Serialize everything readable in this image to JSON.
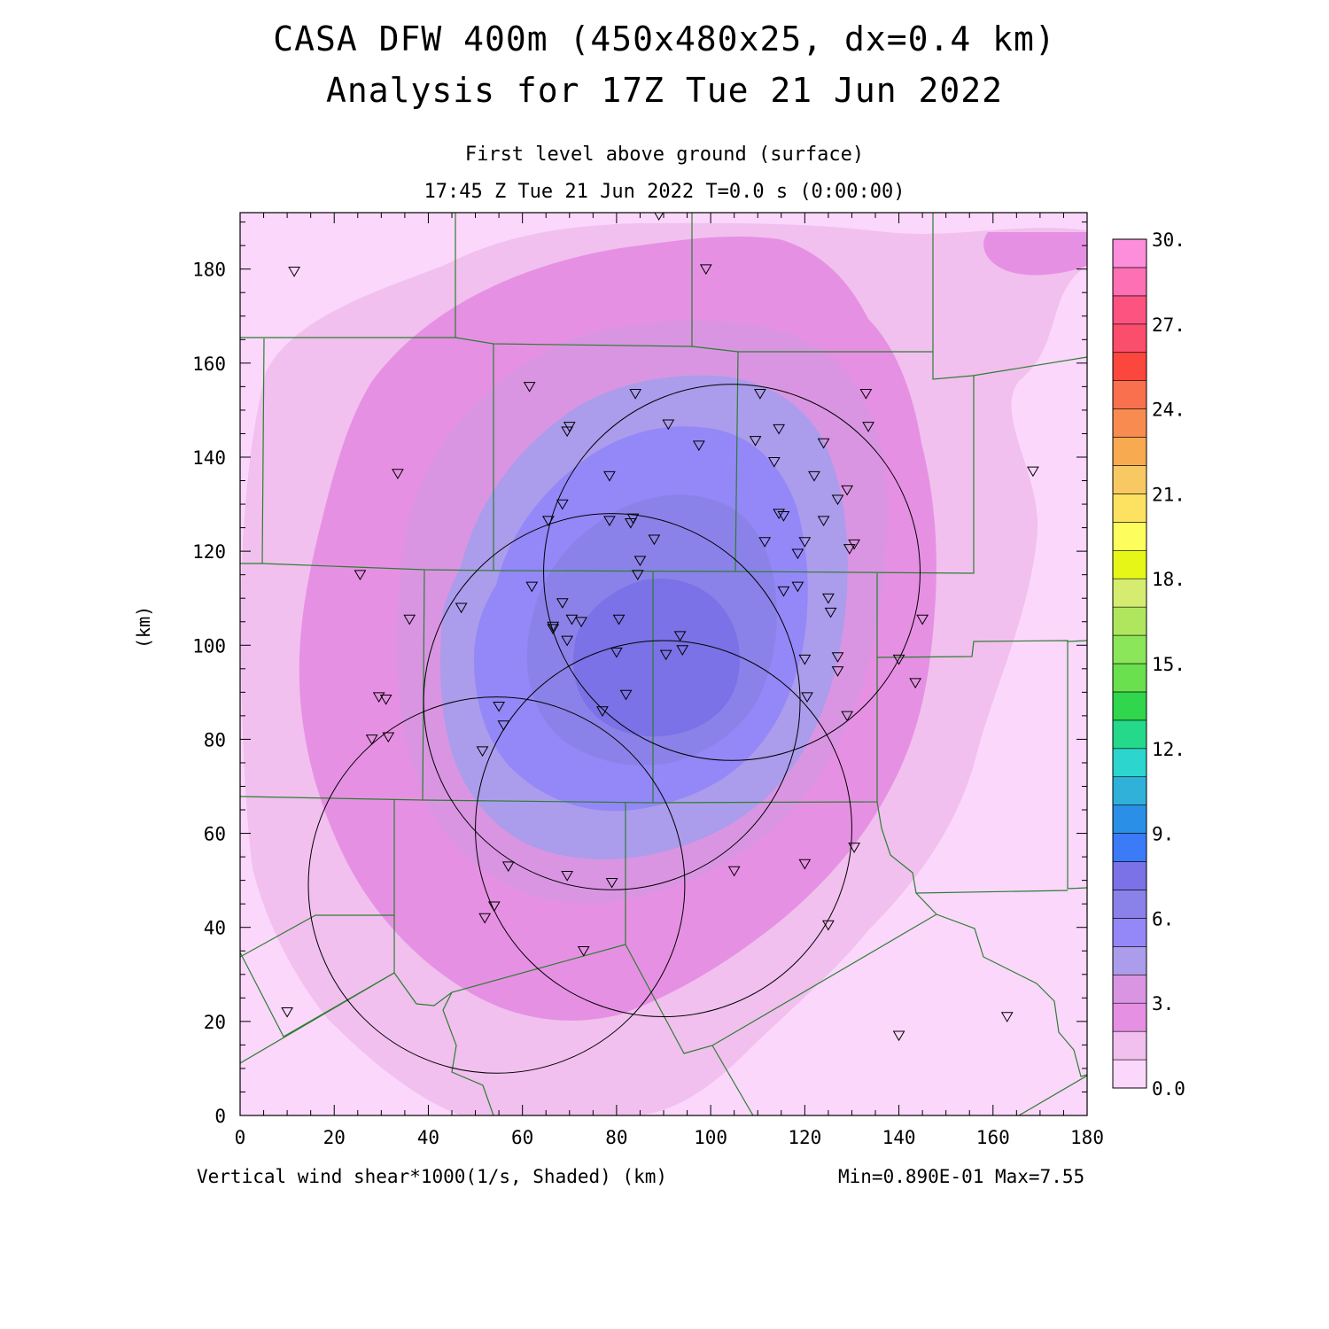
{
  "title": {
    "line1": "CASA DFW 400m (450x480x25, dx=0.4 km)",
    "line2": "Analysis for 17Z Tue 21 Jun 2022"
  },
  "subtitle": {
    "level": "First level above ground (surface)",
    "time": "17:45 Z Tue 21 Jun 2022   T=0.0 s (0:00:00)"
  },
  "footer": {
    "variable": "Vertical wind shear*1000(1/s, Shaded)  (km)",
    "minmax": "Min=0.890E-01 Max=7.55"
  },
  "chart_data": {
    "type": "heatmap",
    "title": "Vertical wind shear*1000 (1/s)",
    "xlabel": "(km)",
    "ylabel": "(km)",
    "xlim": [
      0,
      180
    ],
    "ylim": [
      0,
      192
    ],
    "x_ticks": [
      0,
      20,
      40,
      60,
      80,
      100,
      120,
      140,
      160,
      180
    ],
    "x_tick_labels": [
      "0",
      "20",
      "40",
      "60",
      "80",
      "100",
      "120",
      "140",
      "160",
      "180"
    ],
    "y_ticks": [
      0,
      20,
      40,
      60,
      80,
      100,
      120,
      140,
      160,
      180
    ],
    "y_tick_labels": [
      "0",
      "20",
      "40",
      "60",
      "80",
      "100",
      "120",
      "140",
      "160",
      "180"
    ],
    "min": 0.089,
    "max": 7.55,
    "colorbar": {
      "levels": [
        0,
        1,
        2,
        3,
        4,
        5,
        6,
        7,
        8,
        9,
        10,
        11,
        12,
        13,
        14,
        15,
        16,
        17,
        18,
        19,
        20,
        21,
        22,
        23,
        24,
        25,
        26,
        27,
        28,
        29,
        30
      ],
      "labels": [
        {
          "value": 0,
          "text": "0.0"
        },
        {
          "value": 3,
          "text": "3."
        },
        {
          "value": 6,
          "text": "6."
        },
        {
          "value": 9,
          "text": "9."
        },
        {
          "value": 12,
          "text": "12."
        },
        {
          "value": 15,
          "text": "15."
        },
        {
          "value": 18,
          "text": "18."
        },
        {
          "value": 21,
          "text": "21."
        },
        {
          "value": 24,
          "text": "24."
        },
        {
          "value": 27,
          "text": "27."
        },
        {
          "value": 30,
          "text": "30."
        }
      ],
      "colors": [
        "#fbd7fb",
        "#f1c0ee",
        "#e690e3",
        "#d995e2",
        "#ab9cec",
        "#9487f7",
        "#8a82e8",
        "#7a72e6",
        "#3b7bf7",
        "#2a8fe6",
        "#2fb1da",
        "#2dd5cf",
        "#25d98b",
        "#30d64c",
        "#6ae04f",
        "#8ce659",
        "#b0e65e",
        "#d5ec70",
        "#e6f718",
        "#fdfd5e",
        "#fde261",
        "#f8c962",
        "#f8aa50",
        "#f88c50",
        "#f8704e",
        "#fb473d",
        "#fb4d6c",
        "#fc5380",
        "#fd70b4",
        "#fd8edb"
      ]
    },
    "shear_field_peak_km": {
      "x": 82,
      "y": 95,
      "value": 7.55
    },
    "radar_circles_km": [
      {
        "cx": 104.5,
        "cy": 115.5,
        "r": 40
      },
      {
        "cx": 79,
        "cy": 88,
        "r": 40
      },
      {
        "cx": 90,
        "cy": 61,
        "r": 40
      },
      {
        "cx": 54.5,
        "cy": 49,
        "r": 40
      }
    ],
    "stations_km": [
      [
        11.5,
        179.5
      ],
      [
        99,
        180
      ],
      [
        89,
        191.5
      ],
      [
        61.5,
        155
      ],
      [
        70,
        146.5
      ],
      [
        69.5,
        145.5
      ],
      [
        84,
        153.5
      ],
      [
        91,
        147
      ],
      [
        110.5,
        153.5
      ],
      [
        133,
        153.5
      ],
      [
        133.5,
        146.5
      ],
      [
        114.5,
        146
      ],
      [
        109.5,
        143.5
      ],
      [
        97.5,
        142.5
      ],
      [
        124,
        143
      ],
      [
        33.5,
        136.5
      ],
      [
        78.5,
        136
      ],
      [
        113.5,
        139
      ],
      [
        122,
        136
      ],
      [
        168.5,
        137
      ],
      [
        129,
        133
      ],
      [
        127,
        131
      ],
      [
        68.5,
        130
      ],
      [
        65.5,
        126.5
      ],
      [
        78.5,
        126.5
      ],
      [
        83.5,
        127
      ],
      [
        83,
        126
      ],
      [
        114.5,
        128
      ],
      [
        115.5,
        127.5
      ],
      [
        124,
        126.5
      ],
      [
        88,
        122.5
      ],
      [
        111.5,
        122
      ],
      [
        120,
        122
      ],
      [
        130.5,
        121.5
      ],
      [
        129.5,
        120.5
      ],
      [
        118.5,
        119.5
      ],
      [
        85,
        118
      ],
      [
        84.5,
        115
      ],
      [
        25.5,
        115
      ],
      [
        62,
        112.5
      ],
      [
        115.5,
        111.5
      ],
      [
        118.5,
        112.5
      ],
      [
        125,
        110
      ],
      [
        68.5,
        109
      ],
      [
        125.5,
        107
      ],
      [
        47,
        108
      ],
      [
        36,
        105.5
      ],
      [
        70.5,
        105.5
      ],
      [
        72.5,
        105
      ],
      [
        80.5,
        105.5
      ],
      [
        66.5,
        104
      ],
      [
        66.5,
        103.5
      ],
      [
        69.5,
        101
      ],
      [
        93.5,
        102
      ],
      [
        145,
        105.5
      ],
      [
        94,
        99
      ],
      [
        90.5,
        98
      ],
      [
        80,
        98.5
      ],
      [
        120,
        97
      ],
      [
        127,
        97.5
      ],
      [
        140,
        97
      ],
      [
        127,
        94.5
      ],
      [
        143.5,
        92
      ],
      [
        29.5,
        89
      ],
      [
        31,
        88.5
      ],
      [
        82,
        89.5
      ],
      [
        120.5,
        89
      ],
      [
        55,
        87
      ],
      [
        77,
        86
      ],
      [
        129,
        85
      ],
      [
        56,
        83
      ],
      [
        31.5,
        80.5
      ],
      [
        28,
        80
      ],
      [
        51.5,
        77.5
      ],
      [
        130.5,
        57
      ],
      [
        57,
        53
      ],
      [
        120,
        53.5
      ],
      [
        105,
        52
      ],
      [
        69.5,
        51
      ],
      [
        79,
        49.5
      ],
      [
        54,
        44.5
      ],
      [
        52,
        42
      ],
      [
        125,
        40.5
      ],
      [
        73,
        35
      ],
      [
        10,
        22
      ],
      [
        140,
        17
      ],
      [
        163,
        21
      ]
    ],
    "colorbar_axis_min": 0,
    "colorbar_axis_max": 30
  }
}
